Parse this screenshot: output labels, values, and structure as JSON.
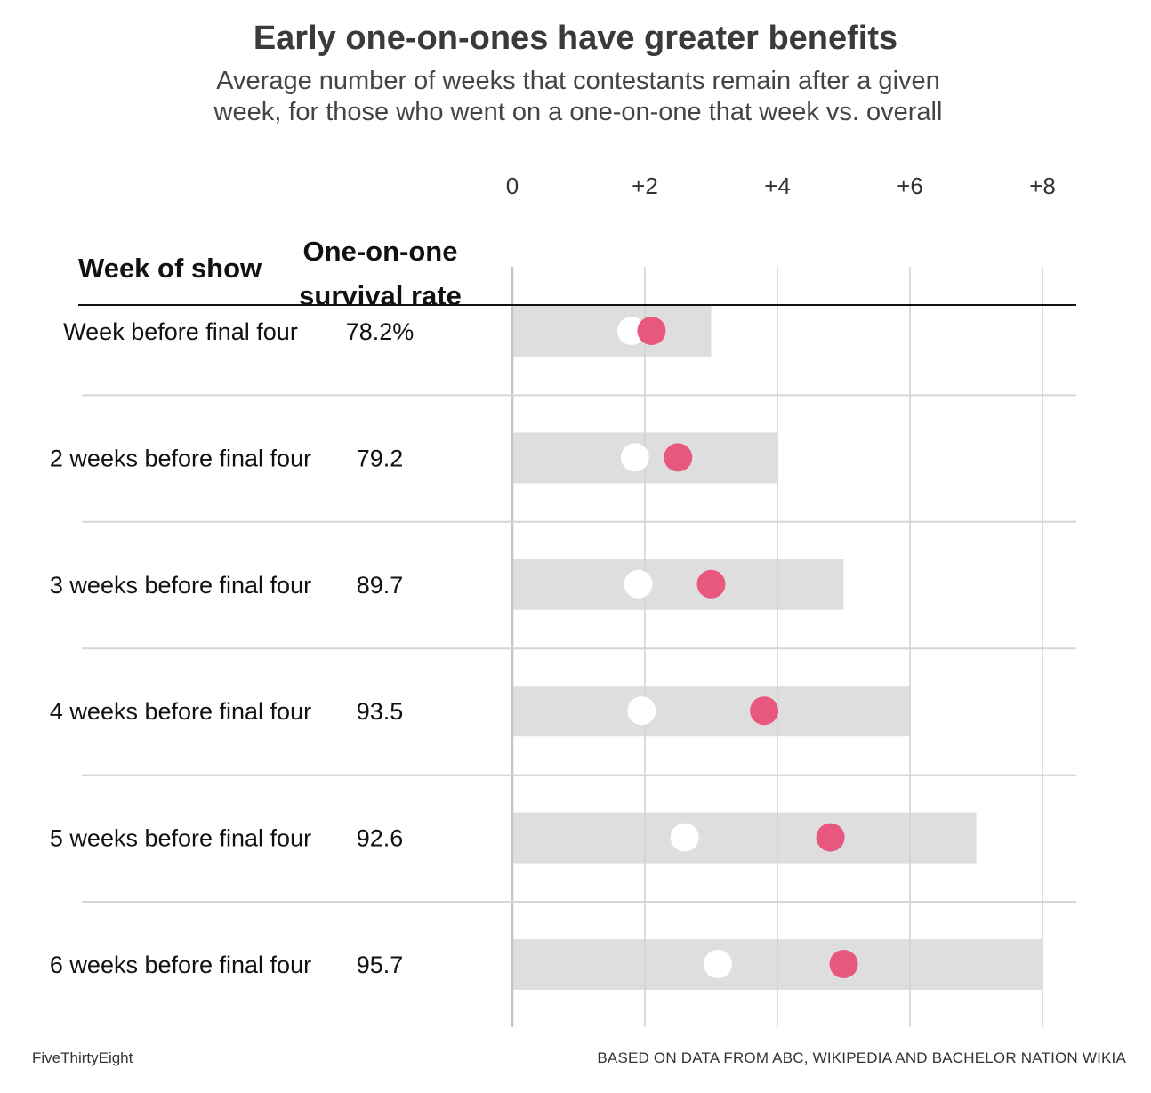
{
  "title": "Early one-on-ones have greater benefits",
  "subtitle_line1": "Average number of weeks that contestants remain after a given",
  "subtitle_line2": "week, for those who went on a one-on-one that week vs. overall",
  "columns": {
    "week_header": "Week of show",
    "rate_header_line1": "One-on-one",
    "rate_header_line2": "survival rate"
  },
  "footer": {
    "brand": "FiveThirtyEight",
    "source": "BASED ON DATA FROM ABC, WIKIPEDIA AND BACHELOR NATION WIKIA"
  },
  "colors": {
    "one_on_one": "#e8577e",
    "overall": "#ffffff",
    "range_bar": "#dedede",
    "grid": "#d0d0d0"
  },
  "chart_data": {
    "type": "scatter",
    "xlim": [
      0,
      8
    ],
    "x_ticks": [
      0,
      2,
      4,
      6,
      8
    ],
    "x_tick_labels": [
      "0",
      "+2",
      "+4",
      "+6",
      "+8"
    ],
    "grid": true,
    "series": [
      {
        "key": "overall"
      },
      {
        "key": "one_on_one"
      }
    ],
    "rows": [
      {
        "label": "Week before final four",
        "rate": "78.2%",
        "max": 3,
        "overall": 1.8,
        "one_on_one": 2.1
      },
      {
        "label": "2 weeks before final four",
        "rate": "79.2",
        "max": 4,
        "overall": 1.85,
        "one_on_one": 2.5
      },
      {
        "label": "3 weeks before final four",
        "rate": "89.7",
        "max": 5,
        "overall": 1.9,
        "one_on_one": 3.0
      },
      {
        "label": "4 weeks before final four",
        "rate": "93.5",
        "max": 6,
        "overall": 1.95,
        "one_on_one": 3.8
      },
      {
        "label": "5 weeks before final four",
        "rate": "92.6",
        "max": 7,
        "overall": 2.6,
        "one_on_one": 4.8
      },
      {
        "label": "6 weeks before final four",
        "rate": "95.7",
        "max": 8,
        "overall": 3.1,
        "one_on_one": 5.0
      }
    ]
  }
}
